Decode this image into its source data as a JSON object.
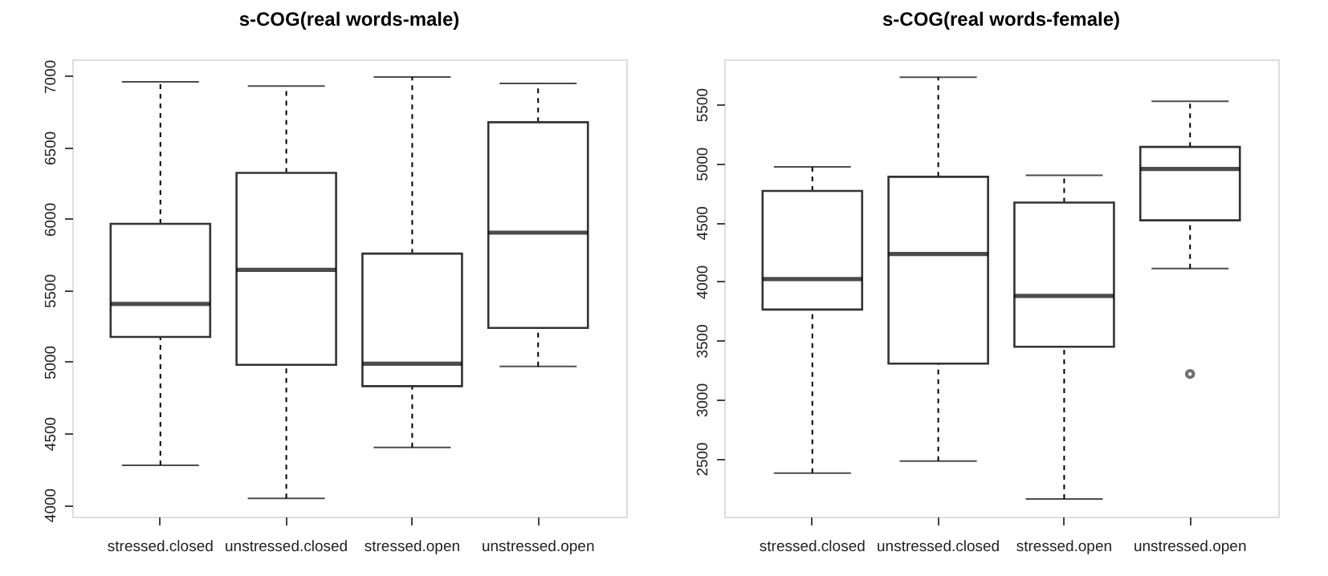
{
  "chart_data": [
    {
      "type": "box",
      "title": "s-COG(real words-male)",
      "categories": [
        "stressed.closed",
        "unstressed.closed",
        "stressed.open",
        "unstressed.open"
      ],
      "boxes": [
        {
          "low": 4275,
          "q1": 5174,
          "median": 5405,
          "q3": 5966,
          "high": 6960
        },
        {
          "low": 4044,
          "q1": 4979,
          "median": 5643,
          "q3": 6322,
          "high": 6930
        },
        {
          "low": 4400,
          "q1": 4829,
          "median": 4987,
          "q3": 5757,
          "high": 6993
        },
        {
          "low": 4968,
          "q1": 5237,
          "median": 5904,
          "q3": 6677,
          "high": 6949
        }
      ],
      "ylim": [
        3916,
        7117
      ],
      "yticks": [
        4000,
        4500,
        5000,
        5500,
        6000,
        6500,
        7000
      ],
      "grid": false
    },
    {
      "type": "box",
      "title": "s-COG(real words-female)",
      "categories": [
        "stressed.closed",
        "unstressed.closed",
        "stressed.open",
        "unstressed.open"
      ],
      "boxes": [
        {
          "low": 2376,
          "q1": 3762,
          "median": 4020,
          "q3": 4767,
          "high": 4971
        },
        {
          "low": 2478,
          "q1": 3304,
          "median": 4233,
          "q3": 4887,
          "high": 5731
        },
        {
          "low": 2156,
          "q1": 3447,
          "median": 3878,
          "q3": 4669,
          "high": 4900
        },
        {
          "low": 4109,
          "q1": 4518,
          "median": 4953,
          "q3": 5140,
          "high": 5527,
          "outliers": [
            3216
          ]
        }
      ],
      "ylim": [
        2007,
        5882
      ],
      "yticks": [
        2500,
        3000,
        3500,
        4000,
        4500,
        5000,
        5500
      ],
      "grid": false
    }
  ]
}
